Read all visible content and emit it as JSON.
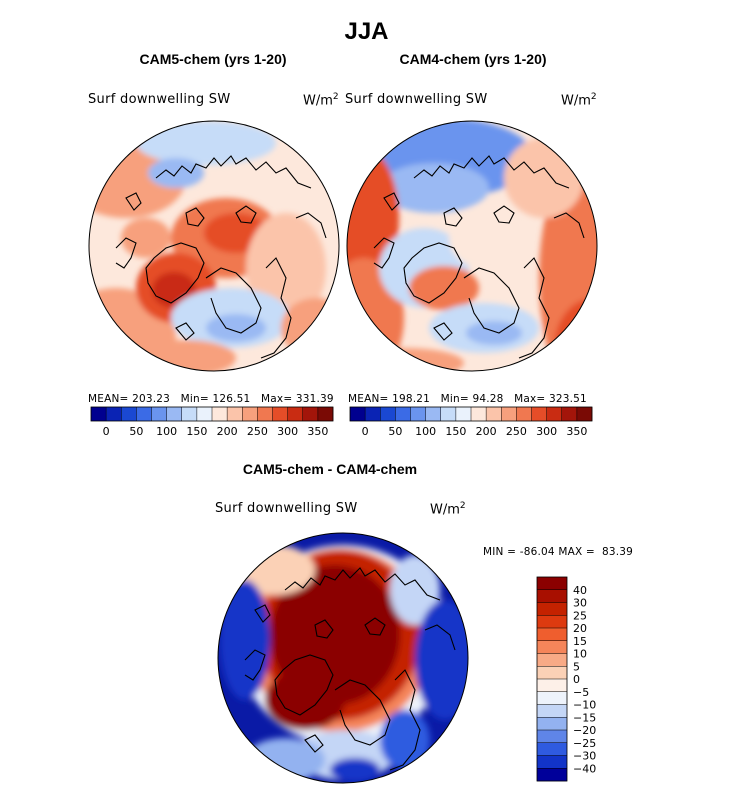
{
  "figure": {
    "title": "JJA",
    "panel_left": {
      "title": "CAM5-chem (yrs 1-20)",
      "variable": "Surf downwelling SW",
      "unit_base": "W/m",
      "unit_exp": "2",
      "mean_label": "MEAN=",
      "mean": "203.23",
      "min_label": "Min=",
      "min": "126.51",
      "max_label": "Max=",
      "max": "331.39"
    },
    "panel_right": {
      "title": "CAM4-chem (yrs 1-20)",
      "variable": "Surf downwelling SW",
      "unit_base": "W/m",
      "unit_exp": "2",
      "mean_label": "MEAN=",
      "mean": "198.21",
      "min_label": "Min=",
      "min": "94.28",
      "max_label": "Max=",
      "max": "323.51"
    },
    "panel_diff": {
      "title": "CAM5-chem - CAM4-chem",
      "variable": "Surf downwelling SW",
      "unit_base": "W/m",
      "unit_exp": "2",
      "min_label": "MIN =",
      "min": "-86.04",
      "max_label": "MAX =",
      "max": "83.39"
    }
  },
  "chart_data": [
    {
      "type": "heatmap",
      "projection": "north-polar-stereographic",
      "title": "CAM5-chem (yrs 1-20)",
      "variable": "Surf downwelling SW",
      "units": "W/m^2",
      "mean": 203.23,
      "min": 126.51,
      "max": 331.39,
      "colorbar_levels": [
        0,
        25,
        50,
        75,
        100,
        125,
        150,
        175,
        200,
        225,
        250,
        275,
        300,
        325,
        350,
        375
      ],
      "colorbar_tick_labels": [
        "0",
        "50",
        "100",
        "150",
        "200",
        "250",
        "300",
        "350"
      ],
      "colorbar_colors": [
        "#00008f",
        "#0a23b4",
        "#1a48d2",
        "#3b6be6",
        "#6a94ee",
        "#9ab9f3",
        "#c6dcf8",
        "#eaf2fc",
        "#fde8dc",
        "#fbc4aa",
        "#f7a07d",
        "#f07850",
        "#e54d28",
        "#c92c12",
        "#a3150a",
        "#7a0a05"
      ]
    },
    {
      "type": "heatmap",
      "projection": "north-polar-stereographic",
      "title": "CAM4-chem (yrs 1-20)",
      "variable": "Surf downwelling SW",
      "units": "W/m^2",
      "mean": 198.21,
      "min": 94.28,
      "max": 323.51,
      "colorbar_levels": [
        0,
        25,
        50,
        75,
        100,
        125,
        150,
        175,
        200,
        225,
        250,
        275,
        300,
        325,
        350,
        375
      ],
      "colorbar_tick_labels": [
        "0",
        "50",
        "100",
        "150",
        "200",
        "250",
        "300",
        "350"
      ],
      "colorbar_colors": [
        "#00008f",
        "#0a23b4",
        "#1a48d2",
        "#3b6be6",
        "#6a94ee",
        "#9ab9f3",
        "#c6dcf8",
        "#eaf2fc",
        "#fde8dc",
        "#fbc4aa",
        "#f7a07d",
        "#f07850",
        "#e54d28",
        "#c92c12",
        "#a3150a",
        "#7a0a05"
      ]
    },
    {
      "type": "heatmap",
      "projection": "north-polar-stereographic",
      "title": "CAM5-chem - CAM4-chem",
      "variable": "Surf downwelling SW",
      "units": "W/m^2",
      "min": -86.04,
      "max": 83.39,
      "colorbar_orientation": "vertical",
      "colorbar_tick_labels": [
        "40",
        "30",
        "25",
        "20",
        "15",
        "10",
        "5",
        "0",
        "−5",
        "−10",
        "−15",
        "−20",
        "−25",
        "−30",
        "−40"
      ],
      "colorbar_colors": [
        "#8b0000",
        "#a80f00",
        "#c42200",
        "#dd3a10",
        "#ef5e2e",
        "#f5855a",
        "#f8aa86",
        "#fbd1b6",
        "#fdf0e8",
        "#eef3fb",
        "#c4d6f6",
        "#93b2f0",
        "#5f85e8",
        "#2f5be0",
        "#1234c8",
        "#00009a"
      ]
    }
  ]
}
